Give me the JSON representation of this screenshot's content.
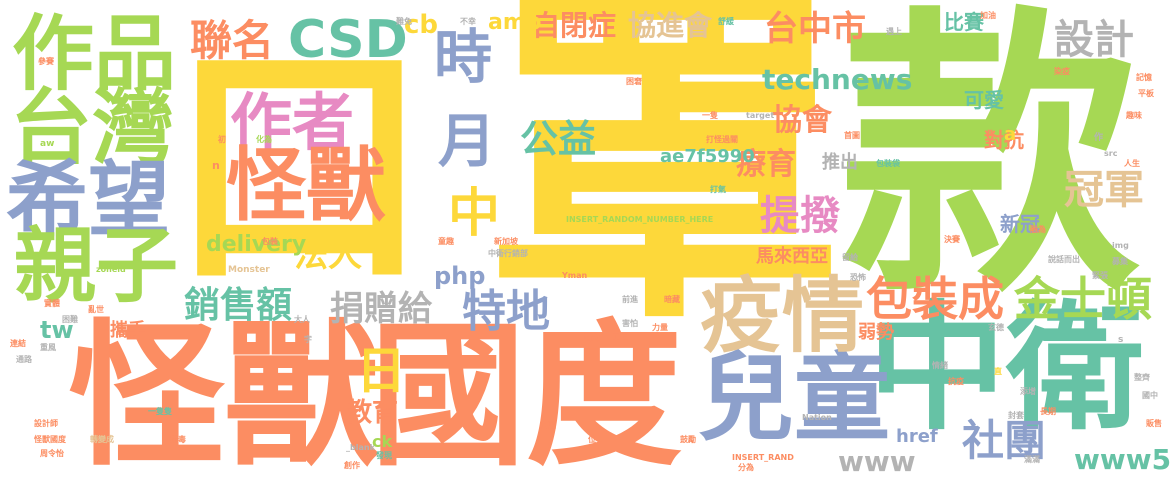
{
  "palette": {
    "yellow": "#fdd83a",
    "green": "#a6d854",
    "orange": "#fc8d62",
    "teal": "#66c2a5",
    "blue": "#8da0cb",
    "pink": "#e78ac3",
    "tan": "#e5c494",
    "gray": "#b3b3b3"
  },
  "words": {
    "kou": "口",
    "zhao": "罩",
    "kuan": "款",
    "guaishou_big": "怪獸",
    "guodu": "國度",
    "zhongwei": "中衛",
    "ertong": "兒童",
    "yiqing": "疫情",
    "zuopin": "作品",
    "taiwan": "台灣",
    "xiwang": "希望",
    "qinzi": "親子",
    "zuozhe": "作者",
    "guaishou_mid": "怪獸",
    "csd": "CSD",
    "lianming": "聯名",
    "shi": "時",
    "yue": "月",
    "zhong": "中",
    "ri": "日",
    "faren": "法人",
    "gongyi": "公益",
    "zibizheng": "自閉症",
    "xiejinhui": "協進會",
    "taizhongshi": "台中市",
    "sheji": "設計",
    "technews": "technews",
    "xiehui": "協會",
    "liaoyu": "療育",
    "tibo": "提撥",
    "guanjun": "冠軍",
    "baozhuangcheng": "包裝成",
    "jinshidun": "金士頓",
    "xiaoshoue": "銷售額",
    "juanzenggei": "捐贈給",
    "tedi": "特地",
    "jiaoyu": "教育",
    "shetuan": "社團",
    "www": "www",
    "www5": "www5",
    "delivery": "delivery",
    "php": "php",
    "tw": "tw",
    "amp": "amp",
    "cb": "cb",
    "bisai": "比賽",
    "keai": "可愛",
    "duikang": "對抗",
    "tuichu": "推出",
    "malaixiya": "馬來西亞",
    "xinguan": "新冠",
    "ruoshi": "弱勢",
    "ae7f": "ae7f5990",
    "href": "href",
    "ck": "ck",
    "xieshou": "攜手",
    "a": "a",
    "small_1": "中衛行銷部",
    "small_2": "INSERT_RANDOM_NUMBER_HERE",
    "small_3": "打氣",
    "small_4": "Monster",
    "small_5": "target",
    "small_6": "打怪過關",
    "small_7": "困窘",
    "small_8": "化為",
    "small_9": "初",
    "small_10": "aw",
    "small_11": "一隻",
    "small_12": "參賽",
    "small_13": "包裝袋",
    "small_14": "首圖",
    "small_15": "染疫",
    "small_16": "記憶",
    "small_17": "加油",
    "small_18": "遇上",
    "small_19": "舒緩",
    "small_20": "難免",
    "small_21": "不幸",
    "small_22": "一隻隻",
    "small_23": "怪獸國度",
    "small_24": "設計師",
    "small_25": "周令怡",
    "small_26": "轉變成",
    "small_27": "病毒",
    "small_28": "發現",
    "small_29": "_blank",
    "small_30": "INSERT_RAND",
    "small_31": "分為",
    "small_32": "創作",
    "small_33": "位",
    "small_34": "來源",
    "small_35": "鼓勵",
    "small_36": "Yman",
    "small_37": "Nation",
    "small_38": "工匠",
    "small_39": "力量",
    "small_40": "情緒",
    "small_41": "抗疫",
    "small_42": "添增",
    "small_43": "封套",
    "small_44": "長期",
    "small_45": "販售",
    "small_46": "滿滿",
    "small_47": "國中",
    "small_48": "整齊",
    "small_49": "img",
    "small_50": "src",
    "small_51": "人生",
    "small_52": "趣味",
    "small_53": "平板",
    "small_54": "決賽",
    "small_55": "融為",
    "small_56": "說話而出",
    "small_57": "恐怖",
    "small_58": "留給",
    "small_59": "緊張",
    "small_60": "募集",
    "small_61": "暗藏",
    "small_62": "前進",
    "small_63": "面對",
    "small_64": "害怕",
    "small_65": "實體",
    "small_66": "亂世",
    "small_67": "連結",
    "small_68": "困難",
    "small_69": "重風",
    "small_70": "通路",
    "small_71": "大人",
    "small_72": "字",
    "small_73": "包裝",
    "small_74": "童趣",
    "small_75": "新加坡",
    "small_76": "zoneid",
    "small_77": "n",
    "small_78": "作",
    "small_79": "玄德",
    "small_80": "s",
    "small_81": "直"
  }
}
